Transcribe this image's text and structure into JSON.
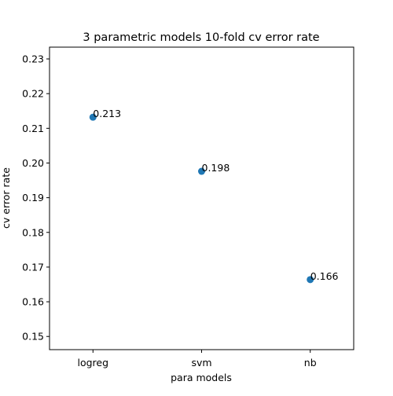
{
  "chart_data": {
    "type": "scatter",
    "title": "3 parametric models 10-fold cv error rate",
    "xlabel": "para models",
    "ylabel": "cv error rate",
    "categories": [
      "logreg",
      "svm",
      "nb"
    ],
    "values": [
      0.2132,
      0.1976,
      0.1664
    ],
    "point_labels": [
      "0.213",
      "0.198",
      "0.166"
    ],
    "ylim": [
      0.1462,
      0.2334
    ],
    "yticks": [
      0.15,
      0.16,
      0.17,
      0.18,
      0.19,
      0.2,
      0.21,
      0.22,
      0.23
    ],
    "ytick_labels": [
      "0.15",
      "0.16",
      "0.17",
      "0.18",
      "0.19",
      "0.20",
      "0.21",
      "0.22",
      "0.23"
    ],
    "grid": false,
    "marker_color": "#1f77b4"
  }
}
